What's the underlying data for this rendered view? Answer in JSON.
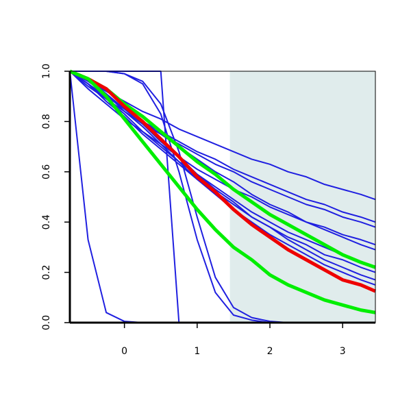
{
  "chart_data": {
    "type": "line",
    "x": [
      -0.75,
      -0.5,
      -0.25,
      0,
      0.25,
      0.5,
      0.75,
      1,
      1.25,
      1.5,
      1.75,
      2,
      2.25,
      2.5,
      2.75,
      3,
      3.25,
      3.45
    ],
    "xlim": [
      -0.75,
      3.45
    ],
    "xticks": [
      0,
      1,
      2,
      3
    ],
    "ylim": [
      0,
      1
    ],
    "yticks": [
      {
        "value": 0,
        "label": "0.0"
      },
      {
        "value": 0.2,
        "label": "0.2"
      },
      {
        "value": 0.4,
        "label": "0.4"
      },
      {
        "value": 0.6,
        "label": "0.6"
      },
      {
        "value": 0.8,
        "label": "0.8"
      },
      {
        "value": 1,
        "label": "1.0"
      }
    ],
    "shaded_x": [
      1.45,
      3.45
    ],
    "shade_color": "#e0ecec",
    "series": [
      {
        "color": "#1f1fe0",
        "values": [
          1,
          0.33,
          0.04,
          0.005,
          0,
          0,
          0,
          0,
          0,
          0,
          0,
          0,
          0,
          0,
          0,
          0,
          0,
          0
        ]
      },
      {
        "color": "#1f1fe0",
        "values": [
          1,
          1,
          1,
          1,
          1,
          1,
          0,
          0,
          0,
          0,
          0,
          0,
          0,
          0,
          0,
          0,
          0,
          0
        ]
      },
      {
        "color": "#1f1fe0",
        "values": [
          1,
          1,
          1,
          0.99,
          0.95,
          0.83,
          0.6,
          0.33,
          0.12,
          0.03,
          0.01,
          0,
          0,
          0,
          0,
          0,
          0,
          0
        ]
      },
      {
        "color": "#1f1fe0",
        "values": [
          1,
          1,
          1,
          0.99,
          0.96,
          0.87,
          0.68,
          0.42,
          0.18,
          0.06,
          0.02,
          0.005,
          0,
          0,
          0,
          0,
          0,
          0
        ]
      },
      {
        "color": "#1f1fe0",
        "values": [
          1,
          0.96,
          0.92,
          0.88,
          0.84,
          0.81,
          0.77,
          0.74,
          0.71,
          0.68,
          0.65,
          0.63,
          0.6,
          0.58,
          0.55,
          0.53,
          0.51,
          0.49
        ]
      },
      {
        "color": "#1f1fe0",
        "values": [
          1,
          0.95,
          0.9,
          0.85,
          0.8,
          0.76,
          0.72,
          0.68,
          0.65,
          0.61,
          0.58,
          0.55,
          0.52,
          0.49,
          0.47,
          0.44,
          0.42,
          0.4
        ]
      },
      {
        "color": "#1f1fe0",
        "values": [
          1,
          0.94,
          0.89,
          0.84,
          0.79,
          0.75,
          0.71,
          0.67,
          0.63,
          0.6,
          0.56,
          0.53,
          0.5,
          0.47,
          0.45,
          0.42,
          0.4,
          0.38
        ]
      },
      {
        "color": "#1f1fe0",
        "values": [
          1,
          0.93,
          0.87,
          0.81,
          0.76,
          0.71,
          0.66,
          0.61,
          0.57,
          0.53,
          0.5,
          0.46,
          0.43,
          0.4,
          0.38,
          0.35,
          0.33,
          0.31
        ]
      },
      {
        "color": "#1f1fe0",
        "values": [
          1,
          0.96,
          0.91,
          0.85,
          0.8,
          0.75,
          0.7,
          0.65,
          0.6,
          0.56,
          0.51,
          0.47,
          0.44,
          0.4,
          0.37,
          0.34,
          0.31,
          0.29
        ]
      },
      {
        "color": "#1f1fe0",
        "values": [
          1,
          0.95,
          0.89,
          0.83,
          0.76,
          0.7,
          0.64,
          0.59,
          0.54,
          0.49,
          0.44,
          0.4,
          0.36,
          0.33,
          0.3,
          0.27,
          0.24,
          0.22
        ]
      },
      {
        "color": "#1f1fe0",
        "values": [
          1,
          0.95,
          0.88,
          0.82,
          0.75,
          0.69,
          0.63,
          0.57,
          0.52,
          0.47,
          0.42,
          0.38,
          0.34,
          0.31,
          0.27,
          0.25,
          0.22,
          0.2
        ]
      },
      {
        "color": "#1f1fe0",
        "values": [
          1,
          0.97,
          0.91,
          0.85,
          0.79,
          0.72,
          0.66,
          0.59,
          0.53,
          0.48,
          0.42,
          0.38,
          0.33,
          0.29,
          0.25,
          0.22,
          0.19,
          0.17
        ]
      },
      {
        "color": "#1f1fe0",
        "values": [
          1,
          0.96,
          0.91,
          0.84,
          0.78,
          0.71,
          0.64,
          0.57,
          0.51,
          0.45,
          0.4,
          0.35,
          0.31,
          0.27,
          0.23,
          0.2,
          0.17,
          0.15
        ]
      },
      {
        "color": "#00ee00",
        "width": 5,
        "values": [
          1,
          0.97,
          0.93,
          0.87,
          0.82,
          0.76,
          0.7,
          0.64,
          0.59,
          0.53,
          0.48,
          0.43,
          0.39,
          0.35,
          0.31,
          0.27,
          0.24,
          0.22
        ]
      },
      {
        "color": "#ee0000",
        "width": 5,
        "values": [
          1,
          0.97,
          0.93,
          0.86,
          0.8,
          0.73,
          0.66,
          0.58,
          0.52,
          0.45,
          0.39,
          0.34,
          0.29,
          0.25,
          0.21,
          0.17,
          0.15,
          0.125
        ]
      },
      {
        "color": "#00ee00",
        "width": 5,
        "values": [
          1,
          0.97,
          0.9,
          0.81,
          0.72,
          0.63,
          0.54,
          0.45,
          0.37,
          0.3,
          0.25,
          0.19,
          0.15,
          0.12,
          0.09,
          0.07,
          0.05,
          0.04
        ]
      }
    ]
  }
}
